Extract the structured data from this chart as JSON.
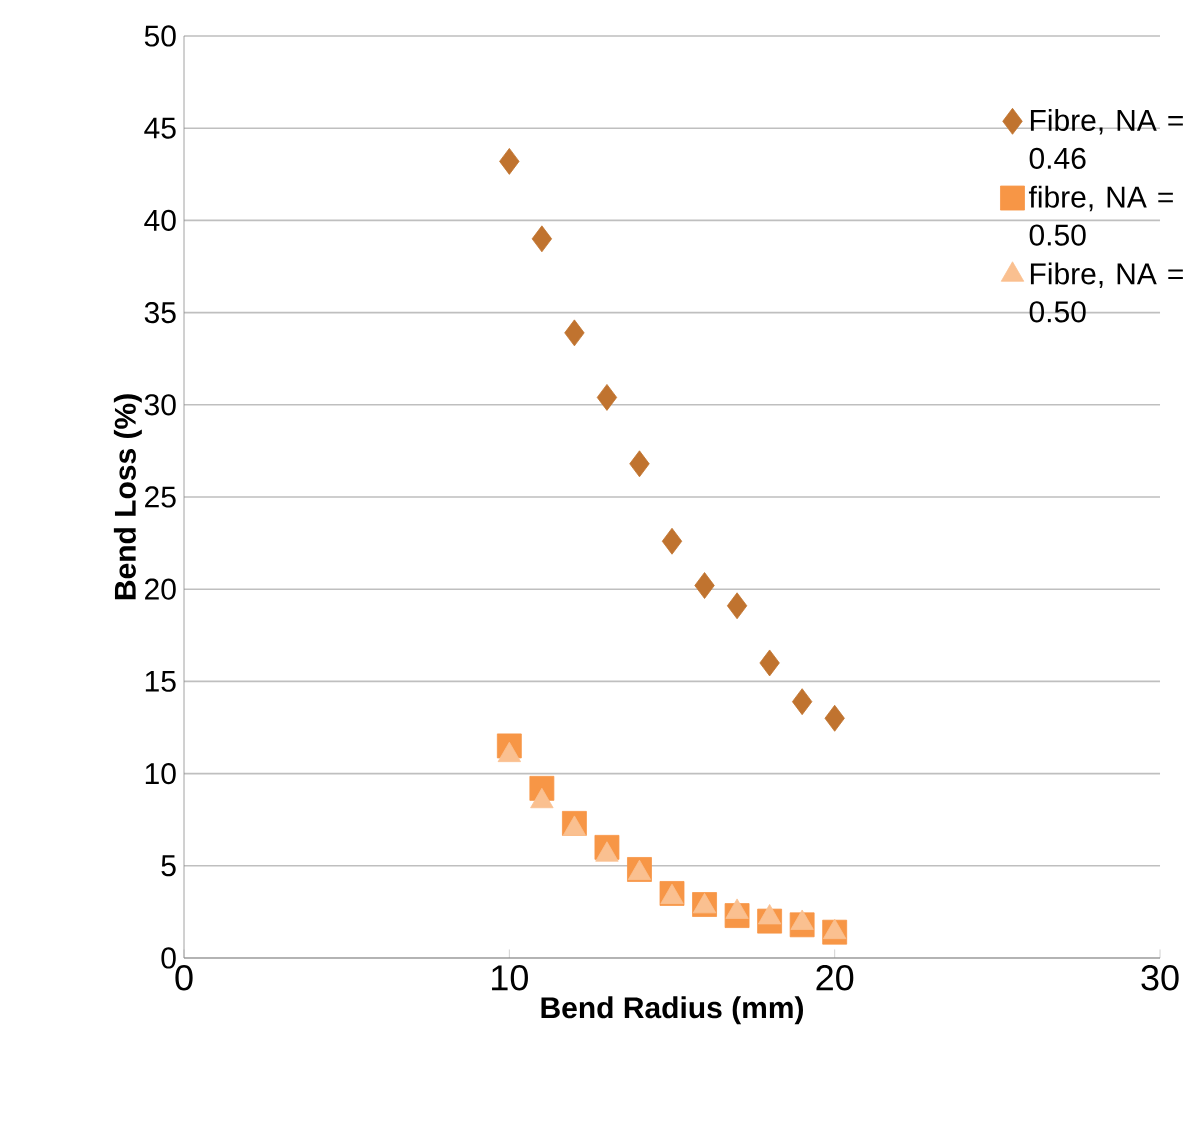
{
  "chart_data": {
    "type": "scatter",
    "xlabel": "Bend Radius (mm)",
    "ylabel": "Bend Loss (%)",
    "x": [
      10,
      11,
      12,
      13,
      14,
      15,
      16,
      17,
      18,
      19,
      20
    ],
    "series": [
      {
        "name": "Fibre, NA = 0.46",
        "color": "#c0732f",
        "marker": "diamond",
        "values": [
          43.2,
          39.0,
          33.9,
          30.4,
          26.8,
          22.6,
          20.2,
          19.1,
          16.0,
          13.9,
          13.0
        ]
      },
      {
        "name": "fibre, NA = 0.50",
        "color": "#f79646",
        "marker": "square",
        "values": [
          11.5,
          9.2,
          7.3,
          6.0,
          4.8,
          3.5,
          2.9,
          2.3,
          2.0,
          1.8,
          1.4
        ]
      },
      {
        "name": "Fibre, NA = 0.50",
        "color": "#fac090",
        "marker": "triangle",
        "values": [
          11.0,
          8.5,
          7.0,
          5.6,
          4.6,
          3.3,
          2.8,
          2.5,
          2.2,
          1.9,
          1.4
        ]
      }
    ],
    "xlim": [
      0,
      30
    ],
    "xticks": [
      0,
      10,
      20,
      30
    ],
    "ylim": [
      0,
      50
    ],
    "yticks": [
      0,
      5,
      10,
      15,
      20,
      25,
      30,
      35,
      40,
      45,
      50
    ],
    "grid": "y",
    "legend": "right"
  }
}
